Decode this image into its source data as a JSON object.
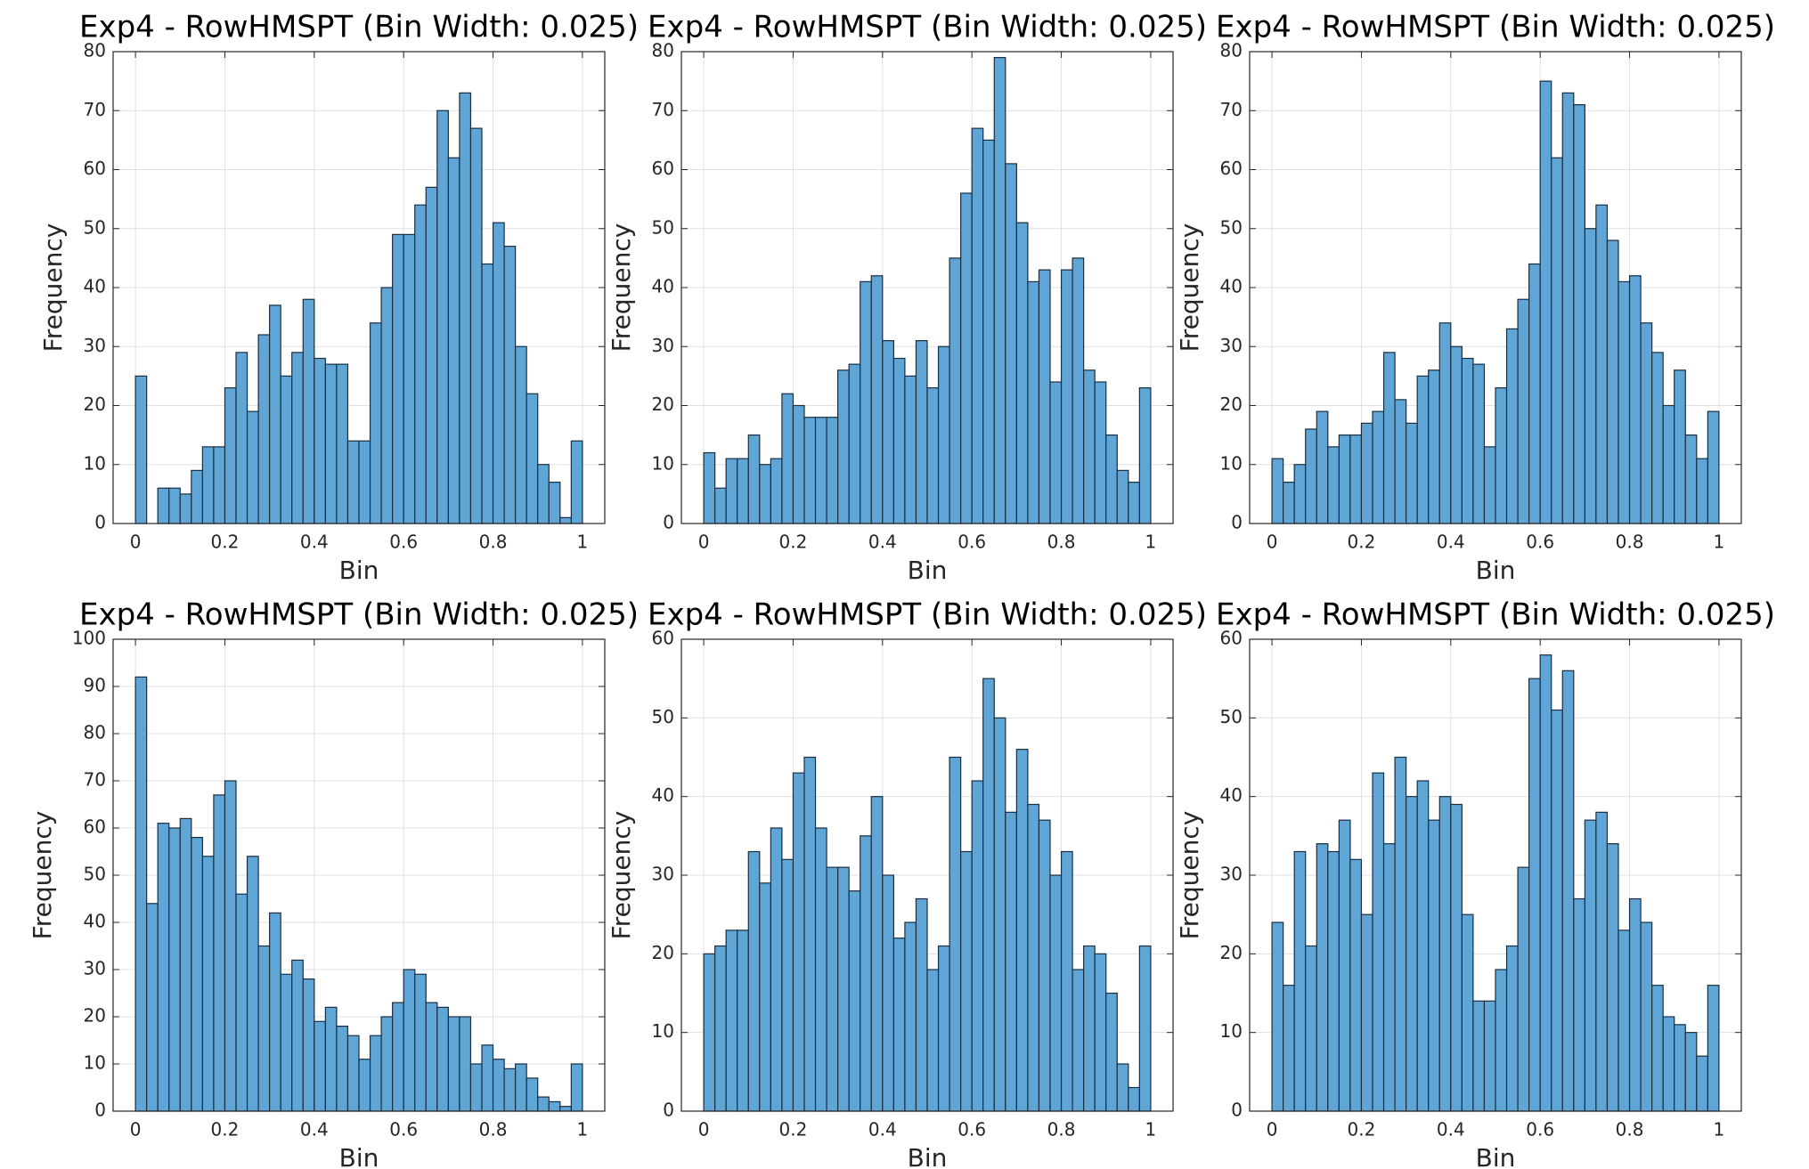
{
  "chart_data": [
    {
      "type": "histogram",
      "title": "Exp4 - RowHMSPT (Bin Width: 0.025)",
      "xlabel": "Bin",
      "ylabel": "Frequency",
      "bins": [
        0,
        0.025,
        0.05,
        0.075,
        0.1,
        0.125,
        0.15,
        0.175,
        0.2,
        0.225,
        0.25,
        0.275,
        0.3,
        0.325,
        0.35,
        0.375,
        0.4,
        0.425,
        0.45,
        0.475,
        0.5,
        0.525,
        0.55,
        0.575,
        0.6,
        0.625,
        0.65,
        0.675,
        0.7,
        0.725,
        0.75,
        0.775,
        0.8,
        0.825,
        0.85,
        0.875,
        0.9,
        0.925,
        0.95,
        0.975,
        1
      ],
      "values": [
        25,
        0,
        6,
        6,
        5,
        9,
        13,
        13,
        23,
        29,
        19,
        32,
        37,
        25,
        29,
        38,
        28,
        27,
        27,
        14,
        14,
        34,
        40,
        49,
        49,
        54,
        57,
        70,
        62,
        73,
        67,
        44,
        51,
        47,
        30,
        22,
        10,
        7,
        1,
        14
      ],
      "color": "#5fa5d6",
      "xlim": [
        -0.05,
        1.05
      ],
      "ylim": [
        0,
        80
      ],
      "xticks": [
        0,
        0.2,
        0.4,
        0.6,
        0.8,
        1
      ],
      "yticks": [
        0,
        10,
        20,
        30,
        40,
        50,
        60,
        70,
        80
      ],
      "grid": true
    },
    {
      "type": "histogram",
      "title": "Exp4 - RowHMSPT (Bin Width: 0.025)",
      "xlabel": "Bin",
      "ylabel": "Frequency",
      "bins": [
        0,
        0.025,
        0.05,
        0.075,
        0.1,
        0.125,
        0.15,
        0.175,
        0.2,
        0.225,
        0.25,
        0.275,
        0.3,
        0.325,
        0.35,
        0.375,
        0.4,
        0.425,
        0.45,
        0.475,
        0.5,
        0.525,
        0.55,
        0.575,
        0.6,
        0.625,
        0.65,
        0.675,
        0.7,
        0.725,
        0.75,
        0.775,
        0.8,
        0.825,
        0.85,
        0.875,
        0.9,
        0.925,
        0.95,
        0.975,
        1
      ],
      "values": [
        12,
        6,
        11,
        11,
        15,
        10,
        11,
        22,
        20,
        18,
        18,
        18,
        26,
        27,
        41,
        42,
        31,
        28,
        25,
        31,
        23,
        30,
        45,
        56,
        67,
        65,
        79,
        61,
        51,
        41,
        43,
        24,
        43,
        45,
        26,
        24,
        15,
        9,
        7,
        23
      ],
      "color": "#5fa5d6",
      "xlim": [
        -0.05,
        1.05
      ],
      "ylim": [
        0,
        80
      ],
      "xticks": [
        0,
        0.2,
        0.4,
        0.6,
        0.8,
        1
      ],
      "yticks": [
        0,
        10,
        20,
        30,
        40,
        50,
        60,
        70,
        80
      ],
      "grid": true
    },
    {
      "type": "histogram",
      "title": "Exp4 - RowHMSPT (Bin Width: 0.025)",
      "xlabel": "Bin",
      "ylabel": "Frequency",
      "bins": [
        0,
        0.025,
        0.05,
        0.075,
        0.1,
        0.125,
        0.15,
        0.175,
        0.2,
        0.225,
        0.25,
        0.275,
        0.3,
        0.325,
        0.35,
        0.375,
        0.4,
        0.425,
        0.45,
        0.475,
        0.5,
        0.525,
        0.55,
        0.575,
        0.6,
        0.625,
        0.65,
        0.675,
        0.7,
        0.725,
        0.75,
        0.775,
        0.8,
        0.825,
        0.85,
        0.875,
        0.9,
        0.925,
        0.95,
        0.975,
        1
      ],
      "values": [
        11,
        7,
        10,
        16,
        19,
        13,
        15,
        15,
        17,
        19,
        29,
        21,
        17,
        25,
        26,
        34,
        30,
        28,
        27,
        13,
        23,
        33,
        38,
        44,
        75,
        62,
        73,
        71,
        50,
        54,
        48,
        41,
        42,
        34,
        29,
        20,
        26,
        15,
        11,
        19
      ],
      "color": "#5fa5d6",
      "xlim": [
        -0.05,
        1.05
      ],
      "ylim": [
        0,
        80
      ],
      "xticks": [
        0,
        0.2,
        0.4,
        0.6,
        0.8,
        1
      ],
      "yticks": [
        0,
        10,
        20,
        30,
        40,
        50,
        60,
        70,
        80
      ],
      "grid": true
    },
    {
      "type": "histogram",
      "title": "Exp4 - RowHMSPT (Bin Width: 0.025)",
      "xlabel": "Bin",
      "ylabel": "Frequency",
      "bins": [
        0,
        0.025,
        0.05,
        0.075,
        0.1,
        0.125,
        0.15,
        0.175,
        0.2,
        0.225,
        0.25,
        0.275,
        0.3,
        0.325,
        0.35,
        0.375,
        0.4,
        0.425,
        0.45,
        0.475,
        0.5,
        0.525,
        0.55,
        0.575,
        0.6,
        0.625,
        0.65,
        0.675,
        0.7,
        0.725,
        0.75,
        0.775,
        0.8,
        0.825,
        0.85,
        0.875,
        0.9,
        0.925,
        0.95,
        0.975,
        1
      ],
      "values": [
        92,
        44,
        61,
        60,
        62,
        58,
        54,
        67,
        70,
        46,
        54,
        35,
        42,
        29,
        32,
        28,
        19,
        22,
        18,
        16,
        11,
        16,
        20,
        23,
        30,
        29,
        23,
        22,
        20,
        20,
        10,
        14,
        11,
        9,
        10,
        7,
        3,
        2,
        1,
        10
      ],
      "color": "#5fa5d6",
      "xlim": [
        -0.05,
        1.05
      ],
      "ylim": [
        0,
        100
      ],
      "xticks": [
        0,
        0.2,
        0.4,
        0.6,
        0.8,
        1
      ],
      "yticks": [
        0,
        10,
        20,
        30,
        40,
        50,
        60,
        70,
        80,
        90,
        100
      ],
      "grid": true
    },
    {
      "type": "histogram",
      "title": "Exp4 - RowHMSPT (Bin Width: 0.025)",
      "xlabel": "Bin",
      "ylabel": "Frequency",
      "bins": [
        0,
        0.025,
        0.05,
        0.075,
        0.1,
        0.125,
        0.15,
        0.175,
        0.2,
        0.225,
        0.25,
        0.275,
        0.3,
        0.325,
        0.35,
        0.375,
        0.4,
        0.425,
        0.45,
        0.475,
        0.5,
        0.525,
        0.55,
        0.575,
        0.6,
        0.625,
        0.65,
        0.675,
        0.7,
        0.725,
        0.75,
        0.775,
        0.8,
        0.825,
        0.85,
        0.875,
        0.9,
        0.925,
        0.95,
        0.975,
        1
      ],
      "values": [
        20,
        21,
        23,
        23,
        33,
        29,
        36,
        32,
        43,
        45,
        36,
        31,
        31,
        28,
        35,
        40,
        30,
        22,
        24,
        27,
        18,
        21,
        45,
        33,
        42,
        55,
        50,
        38,
        46,
        39,
        37,
        30,
        33,
        18,
        21,
        20,
        15,
        6,
        3,
        21
      ],
      "color": "#5fa5d6",
      "xlim": [
        -0.05,
        1.05
      ],
      "ylim": [
        0,
        60
      ],
      "xticks": [
        0,
        0.2,
        0.4,
        0.6,
        0.8,
        1
      ],
      "yticks": [
        0,
        10,
        20,
        30,
        40,
        50,
        60
      ],
      "grid": true
    },
    {
      "type": "histogram",
      "title": "Exp4 - RowHMSPT (Bin Width: 0.025)",
      "xlabel": "Bin",
      "ylabel": "Frequency",
      "bins": [
        0,
        0.025,
        0.05,
        0.075,
        0.1,
        0.125,
        0.15,
        0.175,
        0.2,
        0.225,
        0.25,
        0.275,
        0.3,
        0.325,
        0.35,
        0.375,
        0.4,
        0.425,
        0.45,
        0.475,
        0.5,
        0.525,
        0.55,
        0.575,
        0.6,
        0.625,
        0.65,
        0.675,
        0.7,
        0.725,
        0.75,
        0.775,
        0.8,
        0.825,
        0.85,
        0.875,
        0.9,
        0.925,
        0.95,
        0.975,
        1
      ],
      "values": [
        24,
        16,
        33,
        21,
        34,
        33,
        37,
        32,
        25,
        43,
        34,
        45,
        40,
        42,
        37,
        40,
        39,
        25,
        14,
        14,
        18,
        21,
        31,
        55,
        58,
        51,
        56,
        27,
        37,
        38,
        34,
        23,
        27,
        24,
        16,
        12,
        11,
        10,
        7,
        16
      ],
      "color": "#5fa5d6",
      "xlim": [
        -0.05,
        1.05
      ],
      "ylim": [
        0,
        60
      ],
      "xticks": [
        0,
        0.2,
        0.4,
        0.6,
        0.8,
        1
      ],
      "yticks": [
        0,
        10,
        20,
        30,
        40,
        50,
        60
      ],
      "grid": true
    }
  ]
}
